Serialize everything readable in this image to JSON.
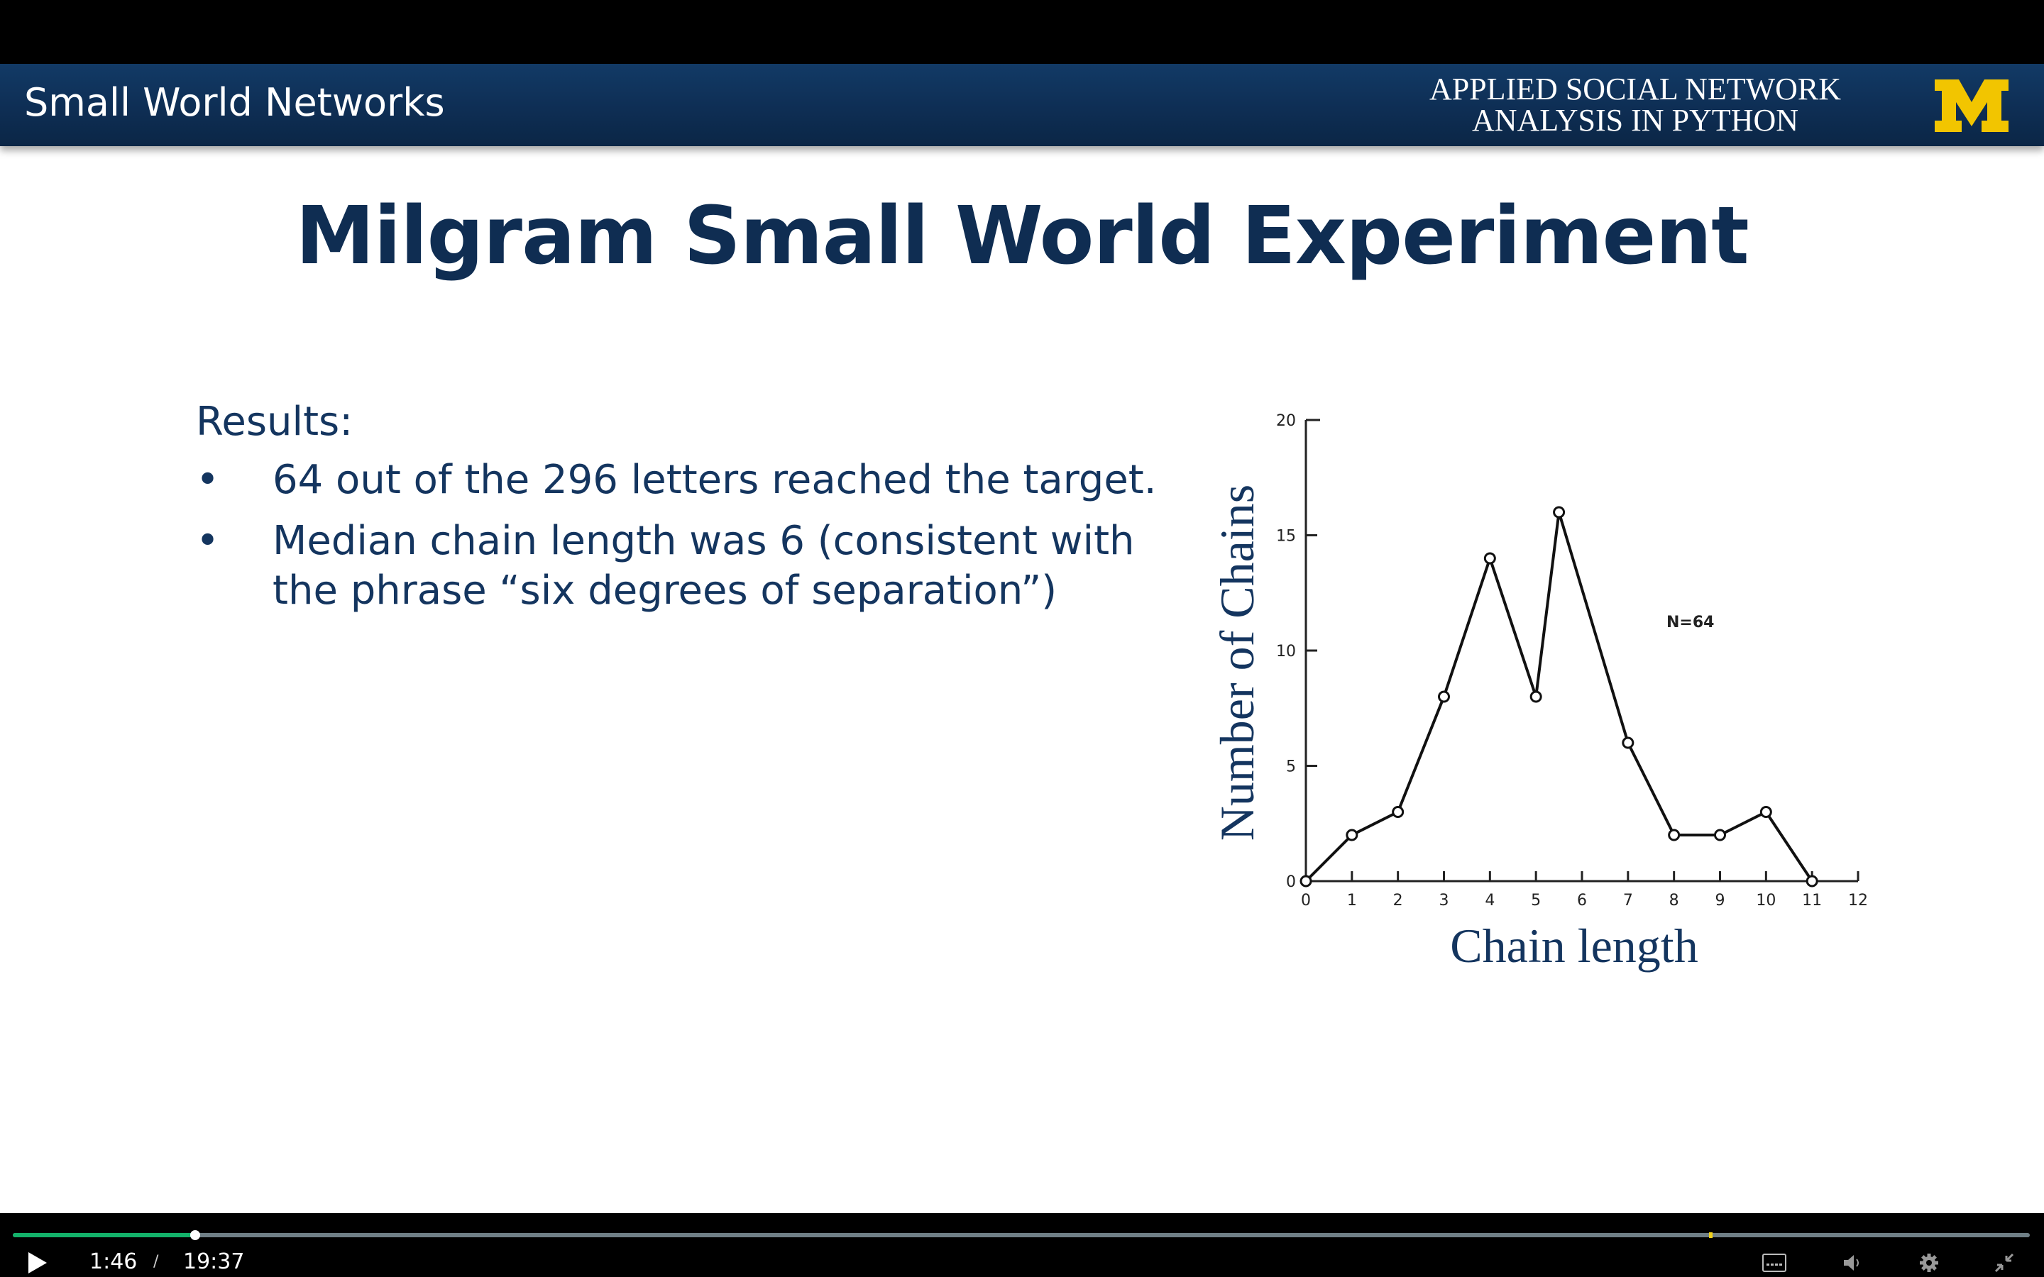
{
  "banner": {
    "section_title": "Small World Networks",
    "course_title_line1": "APPLIED SOCIAL NETWORK",
    "course_title_line2": "ANALYSIS IN PYTHON",
    "logo_letter": "M",
    "background_color": "#0e2e54",
    "logo_color": "#f2c500"
  },
  "slide": {
    "title": "Milgram Small World Experiment",
    "results_heading": "Results:",
    "bullets": [
      "64 out of the 296 letters reached the target.",
      "Median chain length was 6 (consistent with the phrase “six degrees of separation”)"
    ],
    "bullet_symbol": "•",
    "text_color": "#14355f"
  },
  "chart_data": {
    "type": "line",
    "xlabel": "Chain length",
    "ylabel": "Number of Chains",
    "annotation": "N=64",
    "x_ticks": [
      0,
      1,
      2,
      3,
      4,
      5,
      6,
      7,
      8,
      9,
      10,
      11,
      12
    ],
    "y_ticks": [
      0,
      5,
      10,
      15,
      20
    ],
    "xlim": [
      0,
      12
    ],
    "ylim": [
      0,
      20
    ],
    "grid": false,
    "x": [
      0,
      1,
      2,
      3,
      4,
      5,
      5.5,
      7,
      8,
      9,
      10,
      11
    ],
    "values": [
      0,
      2,
      3,
      8,
      14,
      8,
      16,
      6,
      2,
      2,
      3,
      0
    ]
  },
  "player": {
    "current_time": "1:46",
    "separator": "/",
    "duration": "19:37",
    "progress_fraction": 0.0903,
    "played_color": "#13b26a",
    "icons": [
      "play-icon",
      "captions-icon",
      "volume-icon",
      "gear-icon",
      "exit-fullscreen-icon"
    ]
  }
}
